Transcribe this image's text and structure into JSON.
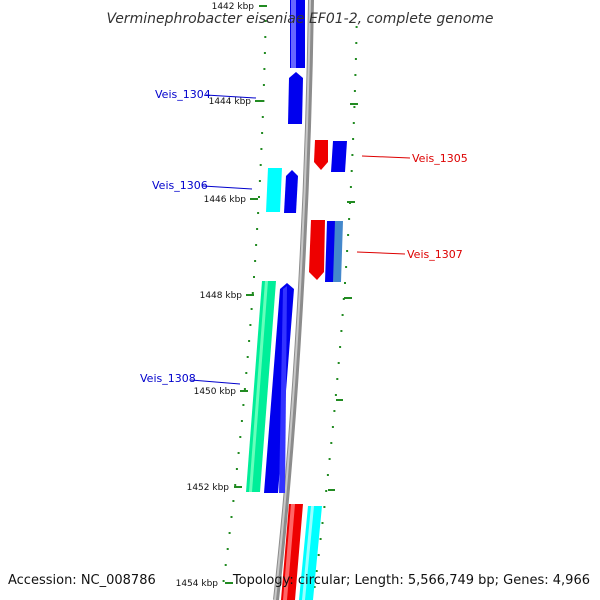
{
  "title": "Verminephrobacter eiseniae EF01-2, complete genome",
  "accession": "Accession: NC_008786",
  "topology": "Topology: circular; Length: 5,566,749 bp; Genes: 4,966",
  "ticks": [
    "1442 kbp",
    "1444 kbp",
    "1446 kbp",
    "1448 kbp",
    "1450 kbp",
    "1452 kbp",
    "1454 kbp"
  ],
  "left_labels": [
    "Veis_1304",
    "Veis_1306",
    "Veis_1308"
  ],
  "right_labels": [
    "Veis_1305",
    "Veis_1307"
  ],
  "colors": {
    "backbone": "#8c8c8c",
    "blue_gene": "#0000ee",
    "cyan_gene": "#00ffff",
    "red_gene": "#ee0000",
    "green_gene": "#00ee99",
    "left_label": "#0000cc",
    "right_label": "#dd0000",
    "tick_green": "#228b22"
  }
}
